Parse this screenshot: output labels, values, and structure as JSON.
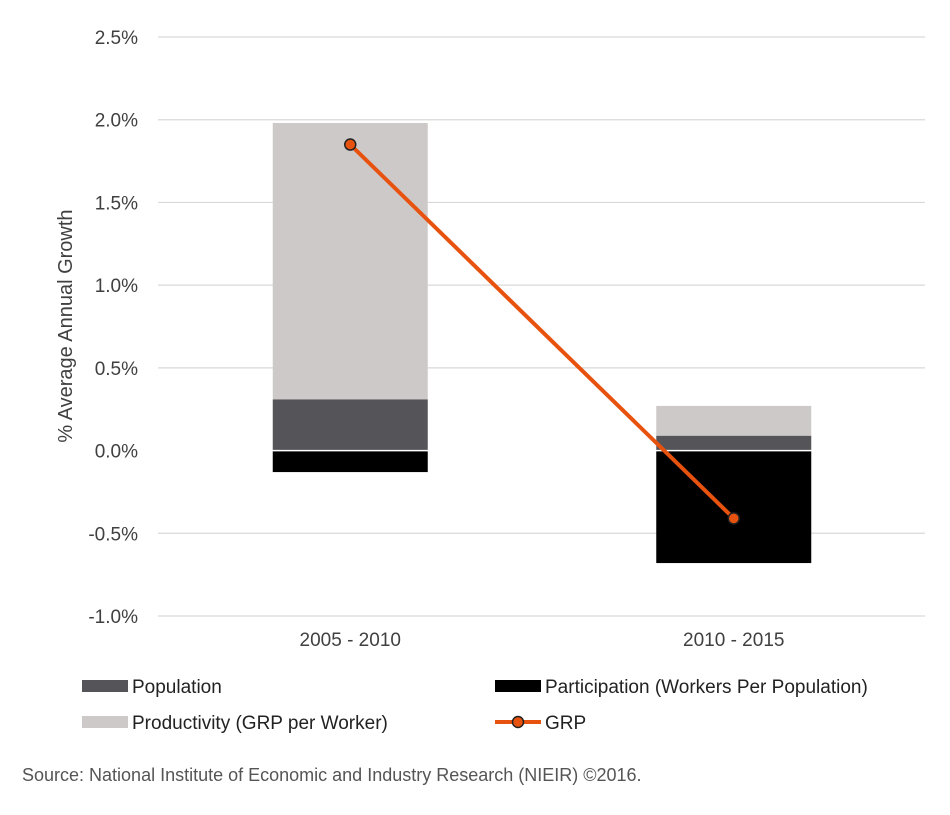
{
  "chart_data": {
    "type": "bar",
    "stacked": true,
    "ylabel": "% Average Annual Growth",
    "xlabel": "",
    "ylim": [
      -1.0,
      2.5
    ],
    "y_ticks": [
      2.5,
      2.0,
      1.5,
      1.0,
      0.5,
      0.0,
      -0.5,
      -1.0
    ],
    "y_tick_labels": [
      "2.5%",
      "2.0%",
      "1.5%",
      "1.0%",
      "0.5%",
      "0.0%",
      "-0.5%",
      "-1.0%"
    ],
    "grid": "horizontal",
    "categories": [
      "2005 - 2010",
      "2010 - 2015"
    ],
    "series": [
      {
        "name": "Population",
        "kind": "bar",
        "color": "#555459",
        "values": [
          0.31,
          0.09
        ]
      },
      {
        "name": "Participation (Workers Per Population)",
        "kind": "bar",
        "color": "#000000",
        "values": [
          -0.13,
          -0.68
        ]
      },
      {
        "name": "Productivity (GRP per Worker)",
        "kind": "bar",
        "color": "#cdc9c9",
        "values": [
          1.67,
          0.18
        ]
      },
      {
        "name": "GRP",
        "kind": "line",
        "color": "#e8520f",
        "values": [
          1.85,
          -0.41
        ]
      }
    ],
    "legend_position": "bottom"
  },
  "source_text": "Source: National Institute of Economic and Industry Research (NIEIR) ©2016."
}
